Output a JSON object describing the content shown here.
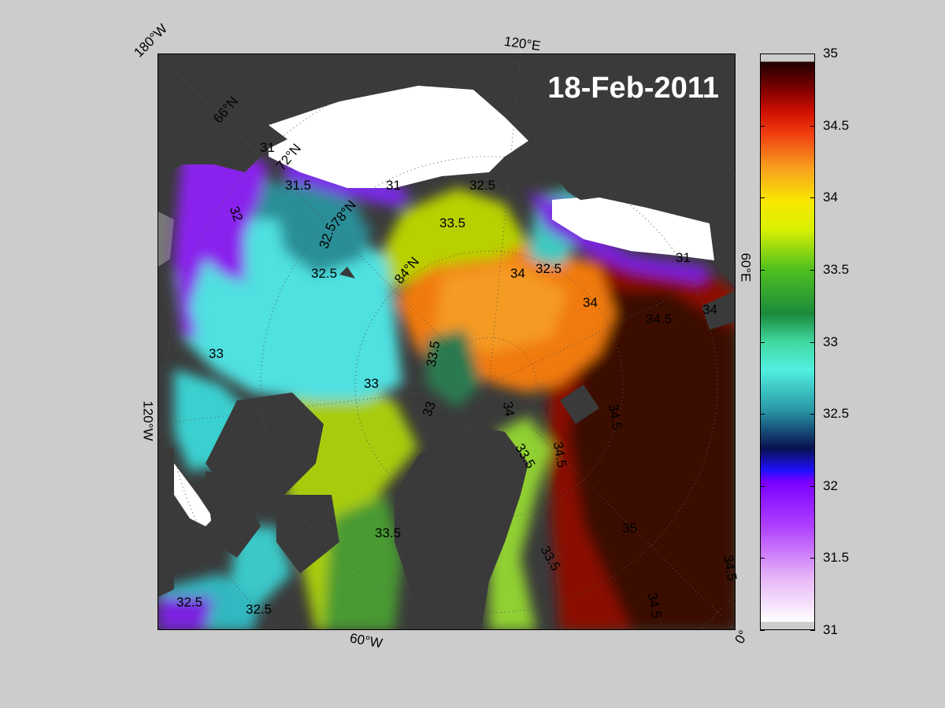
{
  "title": "18-Feb-2011",
  "lon_labels": {
    "w180": "180°W",
    "e120": "120°E",
    "e60": "60°E",
    "w120": "120°W",
    "w60": "60°W",
    "zero": "0°"
  },
  "lat_labels": [
    "66°N",
    "72°N",
    "78°N",
    "84°N"
  ],
  "contour_labels": [
    "31",
    "31.5",
    "32",
    "32.5",
    "33",
    "33.5",
    "34",
    "34.5",
    "35"
  ],
  "colorbar": {
    "min": 31,
    "max": 35,
    "ticks": [
      "35",
      "34.5",
      "34",
      "33.5",
      "33",
      "32.5",
      "32",
      "31.5",
      "31"
    ]
  },
  "colors": {
    "background": "#cccccc",
    "land": "#3a3a3a",
    "ice": "#ffffff"
  }
}
